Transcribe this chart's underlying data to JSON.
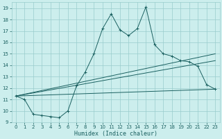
{
  "xlabel": "Humidex (Indice chaleur)",
  "bg_color": "#cceeed",
  "grid_color": "#99cccc",
  "line_color": "#1a6060",
  "xlim": [
    -0.5,
    23.5
  ],
  "ylim": [
    9.0,
    19.5
  ],
  "yticks": [
    9,
    10,
    11,
    12,
    13,
    14,
    15,
    16,
    17,
    18,
    19
  ],
  "xticks": [
    0,
    1,
    2,
    3,
    4,
    5,
    6,
    7,
    8,
    9,
    10,
    11,
    12,
    13,
    14,
    15,
    16,
    17,
    18,
    19,
    20,
    21,
    22,
    23
  ],
  "series": [
    [
      0,
      11.3
    ],
    [
      1,
      11.0
    ],
    [
      2,
      9.7
    ],
    [
      3,
      9.6
    ],
    [
      4,
      9.5
    ],
    [
      5,
      9.4
    ],
    [
      6,
      10.0
    ],
    [
      7,
      12.2
    ],
    [
      8,
      13.4
    ],
    [
      9,
      15.0
    ],
    [
      10,
      17.2
    ],
    [
      11,
      18.5
    ],
    [
      12,
      17.1
    ],
    [
      13,
      16.6
    ],
    [
      14,
      17.2
    ],
    [
      15,
      19.1
    ],
    [
      16,
      15.8
    ],
    [
      17,
      15.0
    ],
    [
      18,
      14.8
    ],
    [
      19,
      14.4
    ],
    [
      20,
      14.3
    ],
    [
      21,
      13.9
    ],
    [
      22,
      12.3
    ],
    [
      23,
      11.9
    ]
  ],
  "line1": [
    [
      0,
      11.3
    ],
    [
      23,
      11.9
    ]
  ],
  "line2": [
    [
      0,
      11.3
    ],
    [
      23,
      14.4
    ]
  ],
  "line3": [
    [
      0,
      11.3
    ],
    [
      23,
      15.0
    ]
  ],
  "tick_fontsize": 5.0,
  "xlabel_fontsize": 6.0,
  "marker_size": 2.5,
  "linewidth": 0.7
}
